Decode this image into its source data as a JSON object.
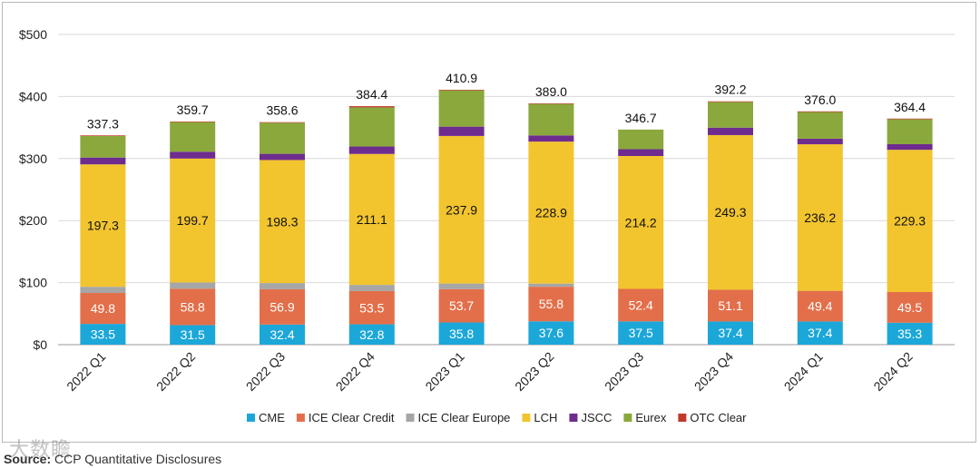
{
  "chart_data": {
    "type": "bar",
    "stacked": true,
    "categories": [
      "2022 Q1",
      "2022 Q2",
      "2022 Q3",
      "2022 Q4",
      "2023 Q1",
      "2023 Q2",
      "2023 Q3",
      "2023 Q4",
      "2024 Q1",
      "2024 Q2"
    ],
    "series": [
      {
        "name": "CME",
        "color": "#1ca7d9",
        "values": [
          33.5,
          31.5,
          32.4,
          32.8,
          35.8,
          37.6,
          37.5,
          37.4,
          37.4,
          35.3
        ],
        "labeled": true
      },
      {
        "name": "ICE Clear Credit",
        "color": "#e36f4a",
        "values": [
          49.8,
          58.8,
          56.9,
          53.5,
          53.7,
          55.8,
          52.4,
          51.1,
          49.4,
          49.5
        ],
        "labeled": true
      },
      {
        "name": "ICE Clear Europe",
        "color": "#a6a6a6",
        "values": [
          10,
          10,
          10,
          10,
          9,
          5,
          0,
          0,
          0,
          0
        ],
        "labeled": false
      },
      {
        "name": "LCH",
        "color": "#f2c42e",
        "values": [
          197.3,
          199.7,
          198.3,
          211.1,
          237.9,
          228.9,
          214.2,
          249.3,
          236.2,
          229.3
        ],
        "labeled": true
      },
      {
        "name": "JSCC",
        "color": "#6e2c8f",
        "values": [
          11,
          11,
          10,
          12,
          15,
          10,
          11,
          12,
          9,
          9
        ],
        "labeled": false
      },
      {
        "name": "Eurex",
        "color": "#8aa83c",
        "values": [
          34.7,
          47.7,
          50,
          63,
          58.5,
          50.7,
          31.6,
          41.4,
          43,
          40.3
        ],
        "labeled": false
      },
      {
        "name": "OTC Clear",
        "color": "#c0392b",
        "values": [
          1,
          1,
          1,
          2,
          1,
          1,
          0,
          1,
          1,
          1
        ],
        "labeled": false
      }
    ],
    "totals": [
      "337.3",
      "359.7",
      "358.6",
      "384.4",
      "410.9",
      "389.0",
      "346.7",
      "392.2",
      "376.0",
      "364.4"
    ],
    "y_ticks": [
      "$0",
      "$100",
      "$200",
      "$300",
      "$400",
      "$500"
    ],
    "ylim": [
      0,
      500
    ],
    "grid": true,
    "legend_position": "bottom"
  },
  "source": {
    "label": "Source:",
    "text": "CCP Quantitative Disclosures"
  },
  "watermark": "大数瞻"
}
